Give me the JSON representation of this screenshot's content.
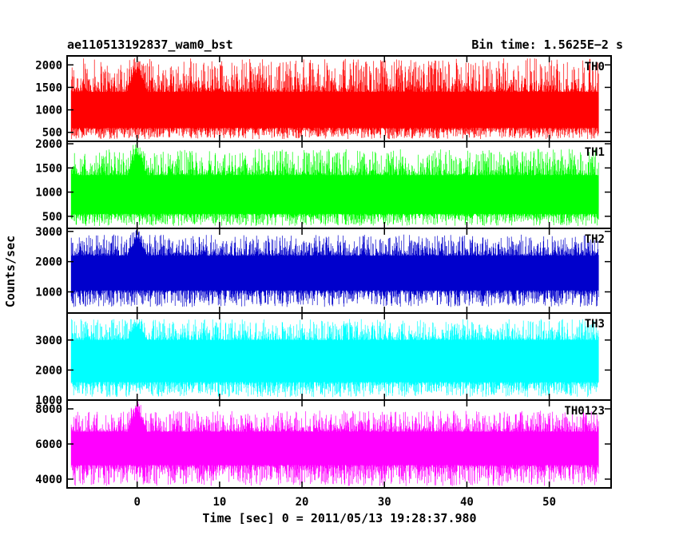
{
  "chart_data": {
    "type": "line",
    "title_left": "ae110513192837_wam0_bst",
    "title_right": "Bin time: 1.5625E−2 s",
    "xlabel": "Time [sec] 0 = 2011/05/13 19:28:37.980",
    "ylabel": "Counts/sec",
    "xlim": [
      -8.5,
      57.5
    ],
    "x_ticks": [
      0,
      10,
      20,
      30,
      40,
      50
    ],
    "x_range_data": [
      -8,
      56
    ],
    "panels": [
      {
        "name": "TH0",
        "color": "#ff0000",
        "ylim": [
          300,
          2200
        ],
        "y_ticks": [
          500,
          1000,
          1500,
          2000
        ],
        "mean": 930,
        "low": 600,
        "high": 1400,
        "min": 350,
        "max": 2150,
        "burst_at": 0,
        "burst_peak": 2200
      },
      {
        "name": "TH1",
        "color": "#00ff00",
        "ylim": [
          250,
          2050
        ],
        "y_ticks": [
          500,
          1000,
          1500,
          2000
        ],
        "mean": 900,
        "low": 550,
        "high": 1350,
        "min": 300,
        "max": 1900,
        "burst_at": 0,
        "burst_peak": 2050
      },
      {
        "name": "TH2",
        "color": "#0000cc",
        "ylim": [
          300,
          3100
        ],
        "y_ticks": [
          1000,
          2000,
          3000
        ],
        "mean": 1550,
        "low": 1050,
        "high": 2200,
        "min": 500,
        "max": 2900,
        "burst_at": 0,
        "burst_peak": 3100
      },
      {
        "name": "TH3",
        "color": "#00ffff",
        "ylim": [
          1000,
          3900
        ],
        "y_ticks": [
          1000,
          2000,
          3000
        ],
        "mean": 2250,
        "low": 1600,
        "high": 3000,
        "min": 1100,
        "max": 3700,
        "burst_at": 0,
        "burst_peak": 3700
      },
      {
        "name": "TH0123",
        "color": "#ff00ff",
        "ylim": [
          3500,
          8500
        ],
        "y_ticks": [
          4000,
          6000,
          8000
        ],
        "mean": 5600,
        "low": 4800,
        "high": 6700,
        "min": 3600,
        "max": 7900,
        "burst_at": 0,
        "burst_peak": 8500
      }
    ]
  }
}
